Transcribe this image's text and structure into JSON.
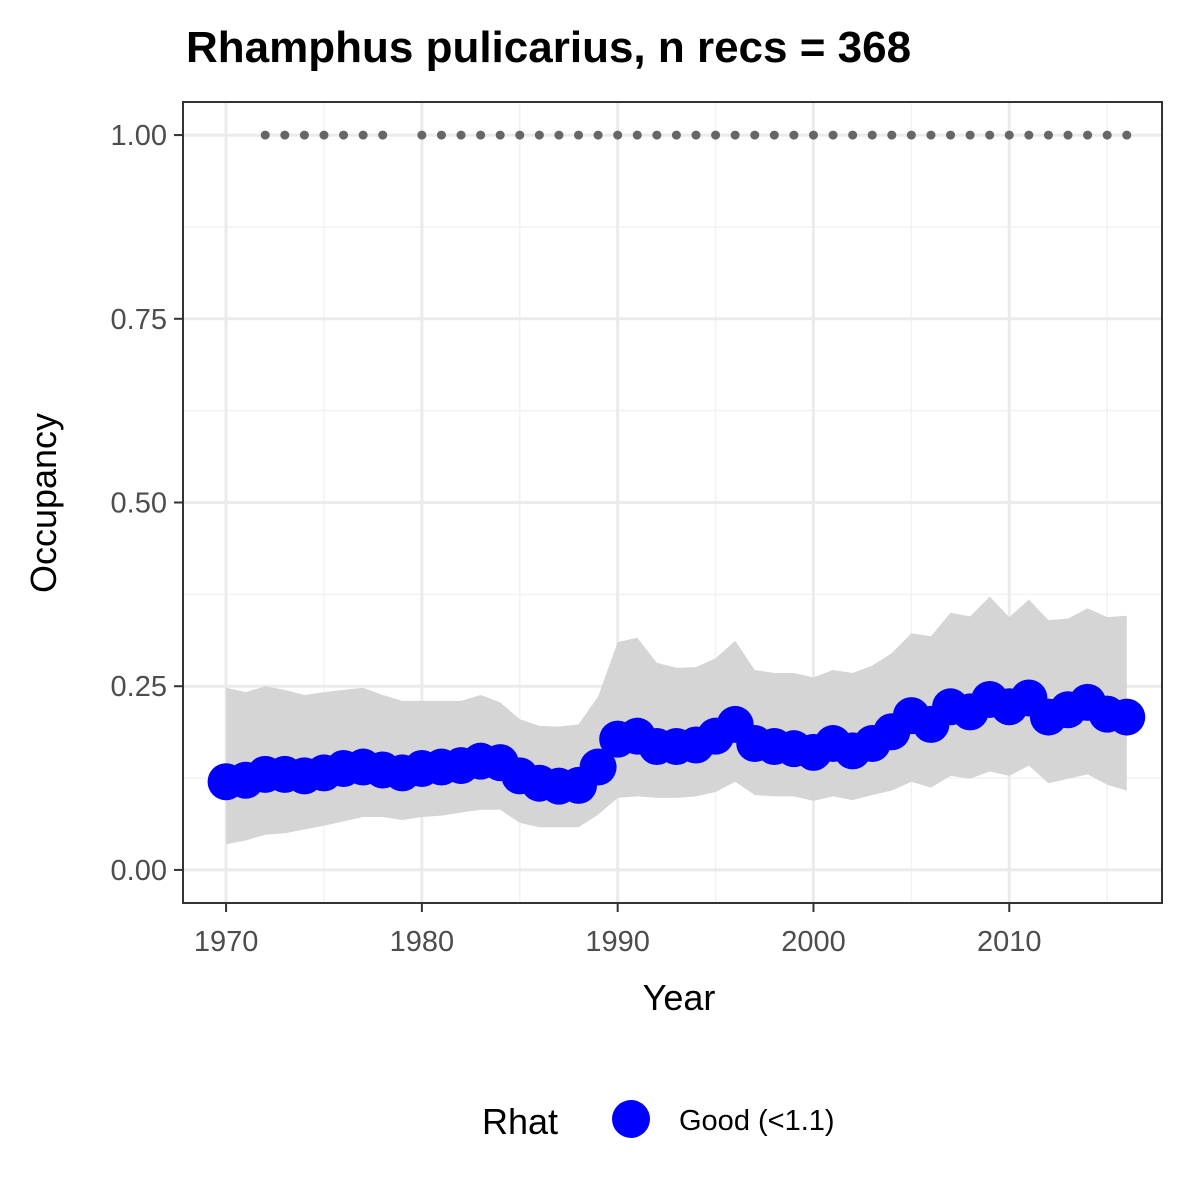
{
  "chart_data": {
    "type": "line",
    "title": "Rhamphus pulicarius, n recs = 368",
    "xlabel": "Year",
    "ylabel": "Occupancy",
    "xlim": [
      1967.8,
      2017.8
    ],
    "ylim": [
      -0.045,
      1.045
    ],
    "x_ticks": [
      1970,
      1980,
      1990,
      2000,
      2010
    ],
    "x_tick_labels": [
      "1970",
      "1980",
      "1990",
      "2000",
      "2010"
    ],
    "y_ticks": [
      0,
      0.25,
      0.5,
      0.75,
      1.0
    ],
    "y_tick_labels": [
      "0.00",
      "0.25",
      "0.50",
      "0.75",
      "1.00"
    ],
    "grid": true,
    "legend": {
      "position": "bottom",
      "title": "Rhat",
      "entries": [
        {
          "label": "Good (<1.1)",
          "color": "#0000ff"
        }
      ]
    },
    "colors": {
      "point": "#0000ff",
      "ribbon": "#d3d3d3",
      "records": "#666666"
    },
    "series": [
      {
        "name": "Good (<1.1)",
        "x": [
          1970,
          1971,
          1972,
          1973,
          1974,
          1975,
          1976,
          1977,
          1978,
          1979,
          1980,
          1981,
          1982,
          1983,
          1984,
          1985,
          1986,
          1987,
          1988,
          1989,
          1990,
          1991,
          1992,
          1993,
          1994,
          1995,
          1996,
          1997,
          1998,
          1999,
          2000,
          2001,
          2002,
          2003,
          2004,
          2005,
          2006,
          2007,
          2008,
          2009,
          2010,
          2011,
          2012,
          2013,
          2014,
          2015,
          2016
        ],
        "y": [
          0.12,
          0.122,
          0.13,
          0.13,
          0.128,
          0.132,
          0.138,
          0.14,
          0.136,
          0.132,
          0.138,
          0.14,
          0.142,
          0.148,
          0.146,
          0.128,
          0.118,
          0.114,
          0.115,
          0.14,
          0.178,
          0.182,
          0.168,
          0.168,
          0.17,
          0.182,
          0.198,
          0.172,
          0.168,
          0.165,
          0.16,
          0.172,
          0.162,
          0.172,
          0.188,
          0.21,
          0.198,
          0.222,
          0.215,
          0.232,
          0.222,
          0.234,
          0.208,
          0.218,
          0.228,
          0.212,
          0.208
        ],
        "lower": [
          0.035,
          0.04,
          0.048,
          0.05,
          0.055,
          0.06,
          0.066,
          0.072,
          0.072,
          0.068,
          0.072,
          0.074,
          0.078,
          0.082,
          0.082,
          0.064,
          0.058,
          0.058,
          0.058,
          0.075,
          0.098,
          0.1,
          0.098,
          0.098,
          0.1,
          0.106,
          0.12,
          0.102,
          0.1,
          0.1,
          0.094,
          0.1,
          0.095,
          0.102,
          0.108,
          0.12,
          0.112,
          0.128,
          0.124,
          0.134,
          0.128,
          0.142,
          0.118,
          0.124,
          0.13,
          0.116,
          0.108
        ],
        "upper": [
          0.248,
          0.242,
          0.25,
          0.245,
          0.238,
          0.242,
          0.245,
          0.248,
          0.238,
          0.23,
          0.23,
          0.23,
          0.23,
          0.238,
          0.228,
          0.205,
          0.196,
          0.195,
          0.198,
          0.236,
          0.31,
          0.316,
          0.282,
          0.275,
          0.276,
          0.288,
          0.312,
          0.272,
          0.268,
          0.268,
          0.262,
          0.272,
          0.268,
          0.278,
          0.295,
          0.322,
          0.318,
          0.35,
          0.345,
          0.372,
          0.344,
          0.368,
          0.34,
          0.342,
          0.356,
          0.344,
          0.346
        ]
      },
      {
        "name": "",
        "type": "scatter",
        "x": [
          1972,
          1973,
          1974,
          1975,
          1976,
          1977,
          1978,
          1980,
          1981,
          1982,
          1983,
          1984,
          1985,
          1986,
          1987,
          1988,
          1989,
          1990,
          1991,
          1992,
          1993,
          1994,
          1995,
          1996,
          1997,
          1998,
          1999,
          2000,
          2001,
          2002,
          2003,
          2004,
          2005,
          2006,
          2007,
          2008,
          2009,
          2010,
          2011,
          2012,
          2013,
          2014,
          2015,
          2016
        ],
        "y": [
          1,
          1,
          1,
          1,
          1,
          1,
          1,
          1,
          1,
          1,
          1,
          1,
          1,
          1,
          1,
          1,
          1,
          1,
          1,
          1,
          1,
          1,
          1,
          1,
          1,
          1,
          1,
          1,
          1,
          1,
          1,
          1,
          1,
          1,
          1,
          1,
          1,
          1,
          1,
          1,
          1,
          1,
          1,
          1
        ]
      }
    ]
  }
}
